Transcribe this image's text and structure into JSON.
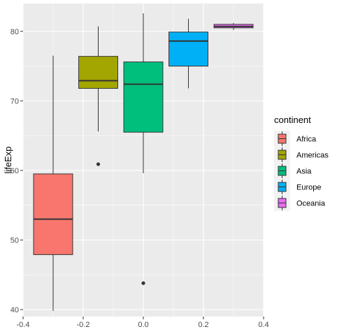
{
  "chart_data": {
    "type": "boxplot",
    "title": "",
    "xlabel": "",
    "ylabel": "lifeExp",
    "xlim": [
      -0.4,
      0.4
    ],
    "ylim": [
      39,
      84
    ],
    "x_ticks": [
      -0.4,
      -0.2,
      0.0,
      0.2,
      0.4
    ],
    "x_tick_labels": [
      "-0.4",
      "-0.2",
      "0.0",
      "0.2",
      "0.4"
    ],
    "y_ticks": [
      40,
      50,
      60,
      70,
      80
    ],
    "y_tick_labels": [
      "40",
      "50",
      "60",
      "70",
      "80"
    ],
    "grid": true,
    "legend": {
      "title": "continent",
      "placement": "right"
    },
    "box_width": 0.13,
    "series": [
      {
        "name": "Africa",
        "x": -0.3,
        "color": "#F8766D",
        "whisker_low": 39.8,
        "q1": 47.9,
        "median": 53.0,
        "q3": 59.5,
        "whisker_high": 76.5,
        "outliers": []
      },
      {
        "name": "Americas",
        "x": -0.15,
        "color": "#A3A500",
        "whisker_low": 65.6,
        "q1": 71.8,
        "median": 72.9,
        "q3": 76.4,
        "whisker_high": 80.7,
        "outliers": [
          60.9
        ]
      },
      {
        "name": "Asia",
        "x": 0.0,
        "color": "#00BF7D",
        "whisker_low": 59.6,
        "q1": 65.5,
        "median": 72.4,
        "q3": 75.6,
        "whisker_high": 82.6,
        "outliers": [
          43.8
        ]
      },
      {
        "name": "Europe",
        "x": 0.15,
        "color": "#00B0F6",
        "whisker_low": 71.8,
        "q1": 75.0,
        "median": 78.6,
        "q3": 79.9,
        "whisker_high": 81.8,
        "outliers": []
      },
      {
        "name": "Oceania",
        "x": 0.3,
        "color": "#E76BF3",
        "whisker_low": 80.2,
        "q1": 80.5,
        "median": 80.7,
        "q3": 81.0,
        "whisker_high": 81.2,
        "outliers": []
      }
    ]
  }
}
